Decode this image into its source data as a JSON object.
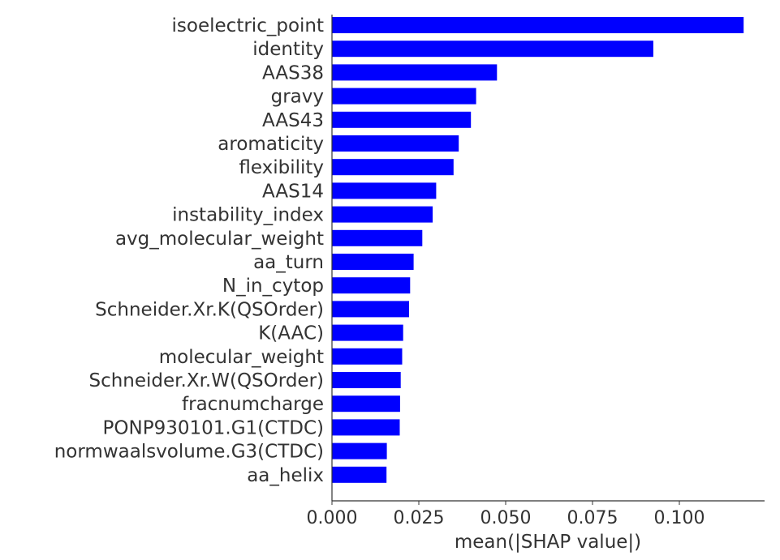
{
  "chart_data": {
    "type": "bar",
    "orientation": "horizontal",
    "categories": [
      "isoelectric_point",
      "identity",
      "AAS38",
      "gravy",
      "AAS43",
      "aromaticity",
      "flexibility",
      "AAS14",
      "instability_index",
      "avg_molecular_weight",
      "aa_turn",
      "N_in_cytop",
      "Schneider.Xr.K(QSOrder)",
      "K(AAC)",
      "molecular_weight",
      "Schneider.Xr.W(QSOrder)",
      "fracnumcharge",
      "PONP930101.G1(CTDC)",
      "normwaalsvolume.G3(CTDC)",
      "aa_helix"
    ],
    "values": [
      0.1185,
      0.0925,
      0.0475,
      0.0415,
      0.04,
      0.0365,
      0.035,
      0.03,
      0.029,
      0.026,
      0.0235,
      0.0225,
      0.0222,
      0.0205,
      0.0202,
      0.0198,
      0.0196,
      0.0195,
      0.0158,
      0.0157
    ],
    "xlabel": "mean(|SHAP value|)",
    "ylabel": "",
    "xlim": [
      0,
      0.125
    ],
    "xticks": [
      0.0,
      0.025,
      0.05,
      0.075,
      0.1
    ],
    "xtick_labels": [
      "0.000",
      "0.025",
      "0.050",
      "0.075",
      "0.100"
    ],
    "bar_color": "#0000ff",
    "axis_color": "#333333",
    "grid": false
  }
}
